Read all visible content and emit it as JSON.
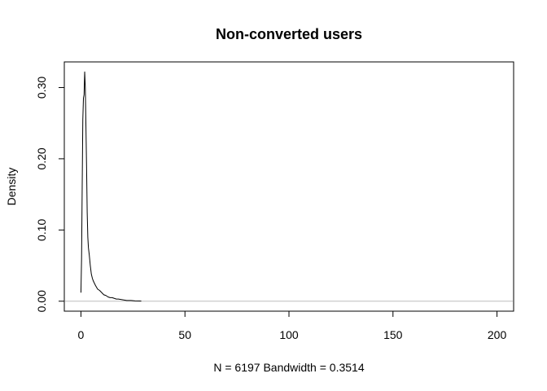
{
  "chart_data": {
    "type": "line",
    "title": "Non-converted users",
    "xlabel": "N = 6197   Bandwidth = 0.3514",
    "ylabel": "Density",
    "xlim": [
      -8,
      208
    ],
    "ylim": [
      -0.014,
      0.336
    ],
    "x_ticks": [
      0,
      50,
      100,
      150,
      200
    ],
    "x_tick_labels": [
      "0",
      "50",
      "100",
      "150",
      "200"
    ],
    "y_ticks": [
      0.0,
      0.1,
      0.2,
      0.3
    ],
    "y_tick_labels": [
      "0.00",
      "0.10",
      "0.20",
      "0.30"
    ],
    "grid": false,
    "legend": "none",
    "colors": {
      "line": "#000000",
      "zero_line": "#bebebe",
      "frame": "#000000"
    },
    "series": [
      {
        "x": [
          0.0,
          0.3,
          0.6,
          0.9,
          1.2,
          1.5,
          1.8,
          2.1,
          2.4,
          2.7,
          3.0,
          3.3,
          3.6,
          4.0,
          4.5,
          5.0,
          5.5,
          6.0,
          7.0,
          8.0,
          9.0,
          10.0,
          11.0,
          12.0,
          13.0,
          14.0,
          15.0,
          16.0,
          17.0,
          18.0,
          20.0,
          22.0,
          24.0,
          26.0,
          28.0,
          29.0
        ],
        "y": [
          0.012,
          0.06,
          0.16,
          0.255,
          0.285,
          0.29,
          0.322,
          0.3,
          0.245,
          0.19,
          0.125,
          0.09,
          0.075,
          0.065,
          0.05,
          0.038,
          0.032,
          0.028,
          0.022,
          0.017,
          0.015,
          0.012,
          0.009,
          0.008,
          0.006,
          0.005,
          0.005,
          0.004,
          0.003,
          0.003,
          0.002,
          0.001,
          0.001,
          0.0005,
          0.0003,
          0.0001
        ]
      }
    ]
  }
}
